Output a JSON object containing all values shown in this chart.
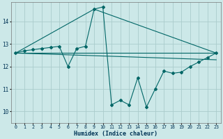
{
  "xlabel": "Humidex (Indice chaleur)",
  "bg_color": "#cce8e8",
  "grid_color": "#aacccc",
  "line_color": "#006666",
  "xlim": [
    -0.5,
    23.5
  ],
  "ylim": [
    9.5,
    14.85
  ],
  "yticks": [
    10,
    11,
    12,
    13,
    14
  ],
  "xticks": [
    0,
    1,
    2,
    3,
    4,
    5,
    6,
    7,
    8,
    9,
    10,
    11,
    12,
    13,
    14,
    15,
    16,
    17,
    18,
    19,
    20,
    21,
    22,
    23
  ],
  "line1_x": [
    0,
    1,
    2,
    3,
    4,
    5,
    6,
    7,
    8,
    9,
    10,
    11,
    12,
    13,
    14,
    15,
    16,
    17,
    18,
    19,
    20,
    21,
    22,
    23
  ],
  "line1_y": [
    12.6,
    12.7,
    12.75,
    12.8,
    12.85,
    12.9,
    12.0,
    12.8,
    12.9,
    14.55,
    14.65,
    10.3,
    10.5,
    10.3,
    11.5,
    10.2,
    11.0,
    11.8,
    11.7,
    11.75,
    12.0,
    12.2,
    12.4,
    12.6
  ],
  "line2_x": [
    0,
    23
  ],
  "line2_y": [
    12.6,
    12.6
  ],
  "line3_x": [
    0,
    9,
    23
  ],
  "line3_y": [
    12.6,
    14.55,
    12.6
  ],
  "line4_x": [
    0,
    23
  ],
  "line4_y": [
    12.6,
    12.3
  ]
}
